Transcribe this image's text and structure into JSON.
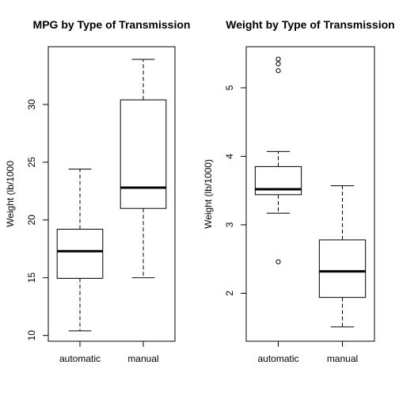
{
  "chart_data": [
    {
      "type": "box",
      "title": "MPG by Type of Transmission",
      "ylabel": "Weight (lb/1000",
      "xlabel": "",
      "categories": [
        "automatic",
        "manual"
      ],
      "yticks": [
        10,
        15,
        20,
        25,
        30
      ],
      "ylim": [
        9.5,
        35.0
      ],
      "boxes": [
        {
          "name": "automatic",
          "whisker_low": 10.4,
          "q1": 14.95,
          "median": 17.3,
          "q3": 19.2,
          "whisker_high": 24.4,
          "outliers": []
        },
        {
          "name": "manual",
          "whisker_low": 15.0,
          "q1": 21.0,
          "median": 22.8,
          "q3": 30.4,
          "whisker_high": 33.9,
          "outliers": []
        }
      ]
    },
    {
      "type": "box",
      "title": "Weight by Type of Transmission",
      "ylabel": "Weight (lb/1000)",
      "xlabel": "",
      "categories": [
        "automatic",
        "manual"
      ],
      "yticks": [
        2,
        3,
        4,
        5
      ],
      "ylim": [
        1.3,
        5.6
      ],
      "boxes": [
        {
          "name": "automatic",
          "whisker_low": 3.17,
          "q1": 3.44,
          "median": 3.52,
          "q3": 3.85,
          "whisker_high": 4.07,
          "outliers": [
            2.46,
            5.25,
            5.35,
            5.42
          ]
        },
        {
          "name": "manual",
          "whisker_low": 1.51,
          "q1": 1.94,
          "median": 2.32,
          "q3": 2.78,
          "whisker_high": 3.57,
          "outliers": []
        }
      ]
    }
  ]
}
